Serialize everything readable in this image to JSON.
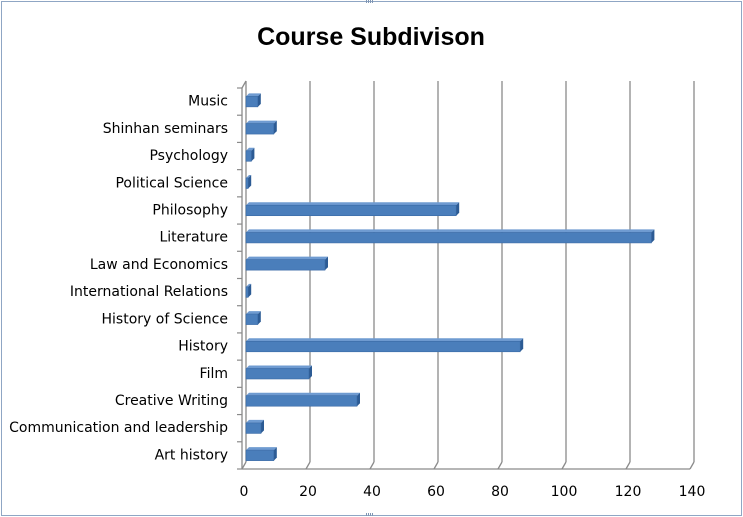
{
  "chart_data": {
    "type": "bar",
    "orientation": "horizontal",
    "style": "3d",
    "title": "Course Subdivison",
    "categories": [
      "Music",
      "Shinhan seminars",
      "Psychology",
      "Political Science",
      "Philosophy",
      "Literature",
      "Law and Economics",
      "International Relations",
      "History of Science",
      "History",
      "Film",
      "Creative Writing",
      "Communication and leadership",
      "Art history"
    ],
    "values": [
      4,
      9,
      2,
      1,
      66,
      127,
      25,
      1,
      4,
      86,
      20,
      35,
      5,
      9
    ],
    "xlim": [
      0,
      140
    ],
    "xticks": [
      "0",
      "20",
      "40",
      "60",
      "80",
      "100",
      "120",
      "140"
    ],
    "grid": true,
    "legend": "none",
    "colors": {
      "bar_front": "#4a7ebb",
      "bar_top": "#6f9bd1",
      "bar_side": "#2c5b94",
      "gridline": "#8a8a8a",
      "frame": "#8fa6c4"
    }
  }
}
